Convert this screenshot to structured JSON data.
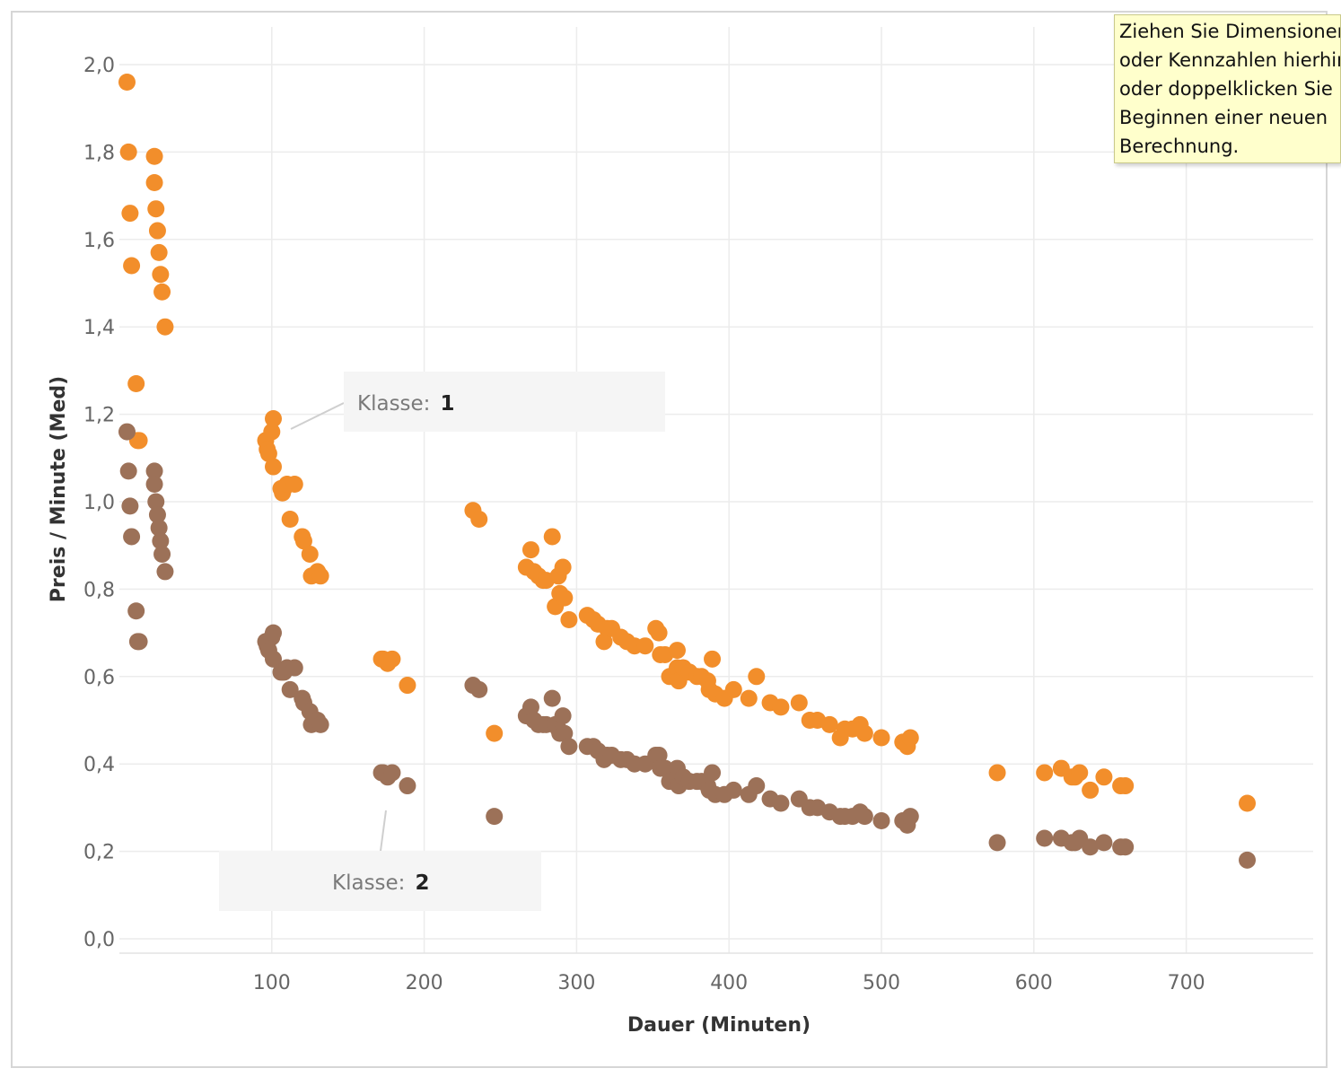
{
  "chart_data": {
    "type": "scatter",
    "xlabel": "Dauer (Minuten)",
    "ylabel": "Preis / Minute (Med)",
    "xlim": [
      0,
      780
    ],
    "ylim": [
      0,
      2.08
    ],
    "x_ticks": [
      {
        "value": 100,
        "label": "100"
      },
      {
        "value": 200,
        "label": "200"
      },
      {
        "value": 300,
        "label": "300"
      },
      {
        "value": 400,
        "label": "400"
      },
      {
        "value": 500,
        "label": "500"
      },
      {
        "value": 600,
        "label": "600"
      },
      {
        "value": 700,
        "label": "700"
      }
    ],
    "y_ticks": [
      {
        "value": 0.0,
        "label": "0,0"
      },
      {
        "value": 0.2,
        "label": "0,2"
      },
      {
        "value": 0.4,
        "label": "0,4"
      },
      {
        "value": 0.6,
        "label": "0,6"
      },
      {
        "value": 0.8,
        "label": "0,8"
      },
      {
        "value": 1.0,
        "label": "1,0"
      },
      {
        "value": 1.2,
        "label": "1,2"
      },
      {
        "value": 1.4,
        "label": "1,4"
      },
      {
        "value": 1.6,
        "label": "1,6"
      },
      {
        "value": 1.8,
        "label": "1,8"
      },
      {
        "value": 2.0,
        "label": "2,0"
      }
    ],
    "grid": true,
    "series": [
      {
        "color": "#f28e2b",
        "points": [
          [
            5,
            1.96
          ],
          [
            6,
            1.8
          ],
          [
            7,
            1.66
          ],
          [
            8,
            1.54
          ],
          [
            11,
            1.27
          ],
          [
            12,
            1.14
          ],
          [
            13,
            1.14
          ],
          [
            23,
            1.79
          ],
          [
            23,
            1.73
          ],
          [
            24,
            1.67
          ],
          [
            25,
            1.62
          ],
          [
            26,
            1.57
          ],
          [
            27,
            1.52
          ],
          [
            28,
            1.48
          ],
          [
            30,
            1.4
          ],
          [
            96,
            1.14
          ],
          [
            97,
            1.12
          ],
          [
            98,
            1.11
          ],
          [
            100,
            1.16
          ],
          [
            101,
            1.19
          ],
          [
            101,
            1.08
          ],
          [
            106,
            1.03
          ],
          [
            107,
            1.02
          ],
          [
            108,
            1.03
          ],
          [
            110,
            1.04
          ],
          [
            112,
            0.96
          ],
          [
            115,
            1.04
          ],
          [
            120,
            0.92
          ],
          [
            121,
            0.91
          ],
          [
            125,
            0.88
          ],
          [
            126,
            0.83
          ],
          [
            130,
            0.84
          ],
          [
            132,
            0.83
          ],
          [
            172,
            0.64
          ],
          [
            173,
            0.64
          ],
          [
            176,
            0.63
          ],
          [
            179,
            0.64
          ],
          [
            189,
            0.58
          ],
          [
            232,
            0.98
          ],
          [
            236,
            0.96
          ],
          [
            246,
            0.47
          ],
          [
            267,
            0.85
          ],
          [
            270,
            0.89
          ],
          [
            272,
            0.84
          ],
          [
            275,
            0.83
          ],
          [
            278,
            0.82
          ],
          [
            280,
            0.82
          ],
          [
            284,
            0.92
          ],
          [
            286,
            0.76
          ],
          [
            288,
            0.83
          ],
          [
            289,
            0.79
          ],
          [
            291,
            0.85
          ],
          [
            292,
            0.78
          ],
          [
            295,
            0.73
          ],
          [
            307,
            0.74
          ],
          [
            311,
            0.73
          ],
          [
            314,
            0.72
          ],
          [
            318,
            0.68
          ],
          [
            320,
            0.71
          ],
          [
            323,
            0.71
          ],
          [
            329,
            0.69
          ],
          [
            333,
            0.68
          ],
          [
            338,
            0.67
          ],
          [
            345,
            0.67
          ],
          [
            352,
            0.71
          ],
          [
            354,
            0.7
          ],
          [
            355,
            0.65
          ],
          [
            358,
            0.65
          ],
          [
            361,
            0.6
          ],
          [
            366,
            0.66
          ],
          [
            366,
            0.62
          ],
          [
            367,
            0.59
          ],
          [
            370,
            0.62
          ],
          [
            374,
            0.61
          ],
          [
            379,
            0.6
          ],
          [
            382,
            0.6
          ],
          [
            386,
            0.59
          ],
          [
            387,
            0.57
          ],
          [
            389,
            0.64
          ],
          [
            391,
            0.56
          ],
          [
            397,
            0.55
          ],
          [
            403,
            0.57
          ],
          [
            413,
            0.55
          ],
          [
            418,
            0.6
          ],
          [
            427,
            0.54
          ],
          [
            434,
            0.53
          ],
          [
            446,
            0.54
          ],
          [
            453,
            0.5
          ],
          [
            458,
            0.5
          ],
          [
            466,
            0.49
          ],
          [
            473,
            0.46
          ],
          [
            476,
            0.48
          ],
          [
            481,
            0.48
          ],
          [
            486,
            0.49
          ],
          [
            489,
            0.47
          ],
          [
            500,
            0.46
          ],
          [
            514,
            0.45
          ],
          [
            517,
            0.44
          ],
          [
            519,
            0.46
          ],
          [
            576,
            0.38
          ],
          [
            607,
            0.38
          ],
          [
            618,
            0.39
          ],
          [
            625,
            0.37
          ],
          [
            627,
            0.37
          ],
          [
            630,
            0.38
          ],
          [
            637,
            0.34
          ],
          [
            646,
            0.37
          ],
          [
            657,
            0.35
          ],
          [
            660,
            0.35
          ],
          [
            740,
            0.31
          ]
        ]
      },
      {
        "color": "#9c7158",
        "points": [
          [
            5,
            1.16
          ],
          [
            6,
            1.07
          ],
          [
            7,
            0.99
          ],
          [
            8,
            0.92
          ],
          [
            11,
            0.75
          ],
          [
            12,
            0.68
          ],
          [
            13,
            0.68
          ],
          [
            23,
            1.07
          ],
          [
            23,
            1.04
          ],
          [
            24,
            1.0
          ],
          [
            25,
            0.97
          ],
          [
            26,
            0.94
          ],
          [
            27,
            0.91
          ],
          [
            28,
            0.88
          ],
          [
            30,
            0.84
          ],
          [
            96,
            0.68
          ],
          [
            97,
            0.67
          ],
          [
            98,
            0.66
          ],
          [
            100,
            0.69
          ],
          [
            101,
            0.7
          ],
          [
            101,
            0.64
          ],
          [
            106,
            0.61
          ],
          [
            107,
            0.61
          ],
          [
            108,
            0.61
          ],
          [
            110,
            0.62
          ],
          [
            112,
            0.57
          ],
          [
            115,
            0.62
          ],
          [
            120,
            0.55
          ],
          [
            121,
            0.54
          ],
          [
            125,
            0.52
          ],
          [
            126,
            0.49
          ],
          [
            130,
            0.5
          ],
          [
            132,
            0.49
          ],
          [
            172,
            0.38
          ],
          [
            173,
            0.38
          ],
          [
            176,
            0.37
          ],
          [
            179,
            0.38
          ],
          [
            189,
            0.35
          ],
          [
            232,
            0.58
          ],
          [
            236,
            0.57
          ],
          [
            246,
            0.28
          ],
          [
            267,
            0.51
          ],
          [
            270,
            0.53
          ],
          [
            272,
            0.5
          ],
          [
            275,
            0.49
          ],
          [
            278,
            0.49
          ],
          [
            280,
            0.49
          ],
          [
            284,
            0.55
          ],
          [
            286,
            0.49
          ],
          [
            288,
            0.48
          ],
          [
            289,
            0.47
          ],
          [
            291,
            0.51
          ],
          [
            292,
            0.47
          ],
          [
            295,
            0.44
          ],
          [
            307,
            0.44
          ],
          [
            311,
            0.44
          ],
          [
            314,
            0.43
          ],
          [
            318,
            0.41
          ],
          [
            320,
            0.42
          ],
          [
            323,
            0.42
          ],
          [
            329,
            0.41
          ],
          [
            333,
            0.41
          ],
          [
            338,
            0.4
          ],
          [
            345,
            0.4
          ],
          [
            352,
            0.42
          ],
          [
            354,
            0.42
          ],
          [
            355,
            0.39
          ],
          [
            358,
            0.39
          ],
          [
            361,
            0.36
          ],
          [
            366,
            0.39
          ],
          [
            366,
            0.37
          ],
          [
            367,
            0.35
          ],
          [
            370,
            0.37
          ],
          [
            374,
            0.36
          ],
          [
            379,
            0.36
          ],
          [
            382,
            0.36
          ],
          [
            386,
            0.35
          ],
          [
            387,
            0.34
          ],
          [
            389,
            0.38
          ],
          [
            391,
            0.33
          ],
          [
            397,
            0.33
          ],
          [
            403,
            0.34
          ],
          [
            413,
            0.33
          ],
          [
            418,
            0.35
          ],
          [
            427,
            0.32
          ],
          [
            434,
            0.31
          ],
          [
            446,
            0.32
          ],
          [
            453,
            0.3
          ],
          [
            458,
            0.3
          ],
          [
            466,
            0.29
          ],
          [
            473,
            0.28
          ],
          [
            476,
            0.28
          ],
          [
            481,
            0.28
          ],
          [
            486,
            0.29
          ],
          [
            489,
            0.28
          ],
          [
            500,
            0.27
          ],
          [
            514,
            0.27
          ],
          [
            517,
            0.26
          ],
          [
            519,
            0.28
          ],
          [
            576,
            0.22
          ],
          [
            607,
            0.23
          ],
          [
            618,
            0.23
          ],
          [
            625,
            0.22
          ],
          [
            627,
            0.22
          ],
          [
            630,
            0.23
          ],
          [
            637,
            0.21
          ],
          [
            646,
            0.22
          ],
          [
            657,
            0.21
          ],
          [
            660,
            0.21
          ],
          [
            740,
            0.18
          ]
        ]
      }
    ],
    "annotations": [
      {
        "label": "Klasse:",
        "value": "1"
      },
      {
        "label": "Klasse:",
        "value": "2"
      }
    ]
  },
  "drop_hint": {
    "text": "Ziehen Sie Dimensionen\noder Kennzahlen hierhin\noder doppelklicken Sie\nBeginnen einer neuen\nBerechnung."
  }
}
